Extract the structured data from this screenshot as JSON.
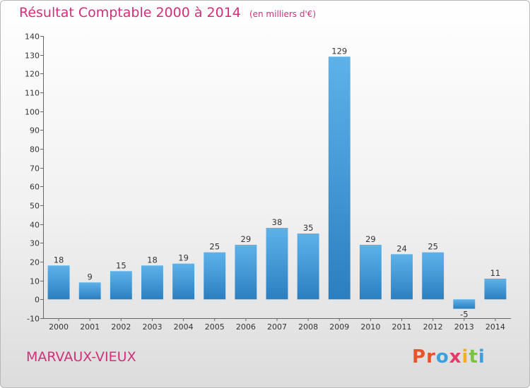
{
  "title": "Résultat Comptable 2000 à 2014",
  "unit_note": "(en milliers d'€)",
  "commune": "MARVAUX-VIEUX",
  "logo_letters": [
    "P",
    "r",
    "o",
    "x",
    "i",
    "t",
    "i"
  ],
  "colors": {
    "title": "#d0307a",
    "bar_light": "#5eb2ea",
    "bar_dark": "#2b7fc0",
    "logo": [
      "#e8532c",
      "#e8532c",
      "#3aa0de",
      "#e23b6a",
      "#f2b01e",
      "#7cc242",
      "#3aa0de"
    ]
  },
  "chart_data": {
    "type": "bar",
    "title": "Résultat Comptable 2000 à 2014",
    "ylabel": "(en milliers d'€)",
    "xlabel": "",
    "categories": [
      "2000",
      "2001",
      "2002",
      "2003",
      "2004",
      "2005",
      "2006",
      "2007",
      "2008",
      "2009",
      "2010",
      "2011",
      "2012",
      "2013",
      "2014"
    ],
    "values": [
      18,
      9,
      15,
      18,
      19,
      25,
      29,
      38,
      35,
      129,
      29,
      24,
      25,
      -5,
      11
    ],
    "ylim": [
      -10,
      140
    ],
    "yticks": [
      -10,
      0,
      10,
      20,
      30,
      40,
      50,
      60,
      70,
      80,
      90,
      100,
      110,
      120,
      130,
      140
    ],
    "grid": false,
    "legend": "none"
  }
}
